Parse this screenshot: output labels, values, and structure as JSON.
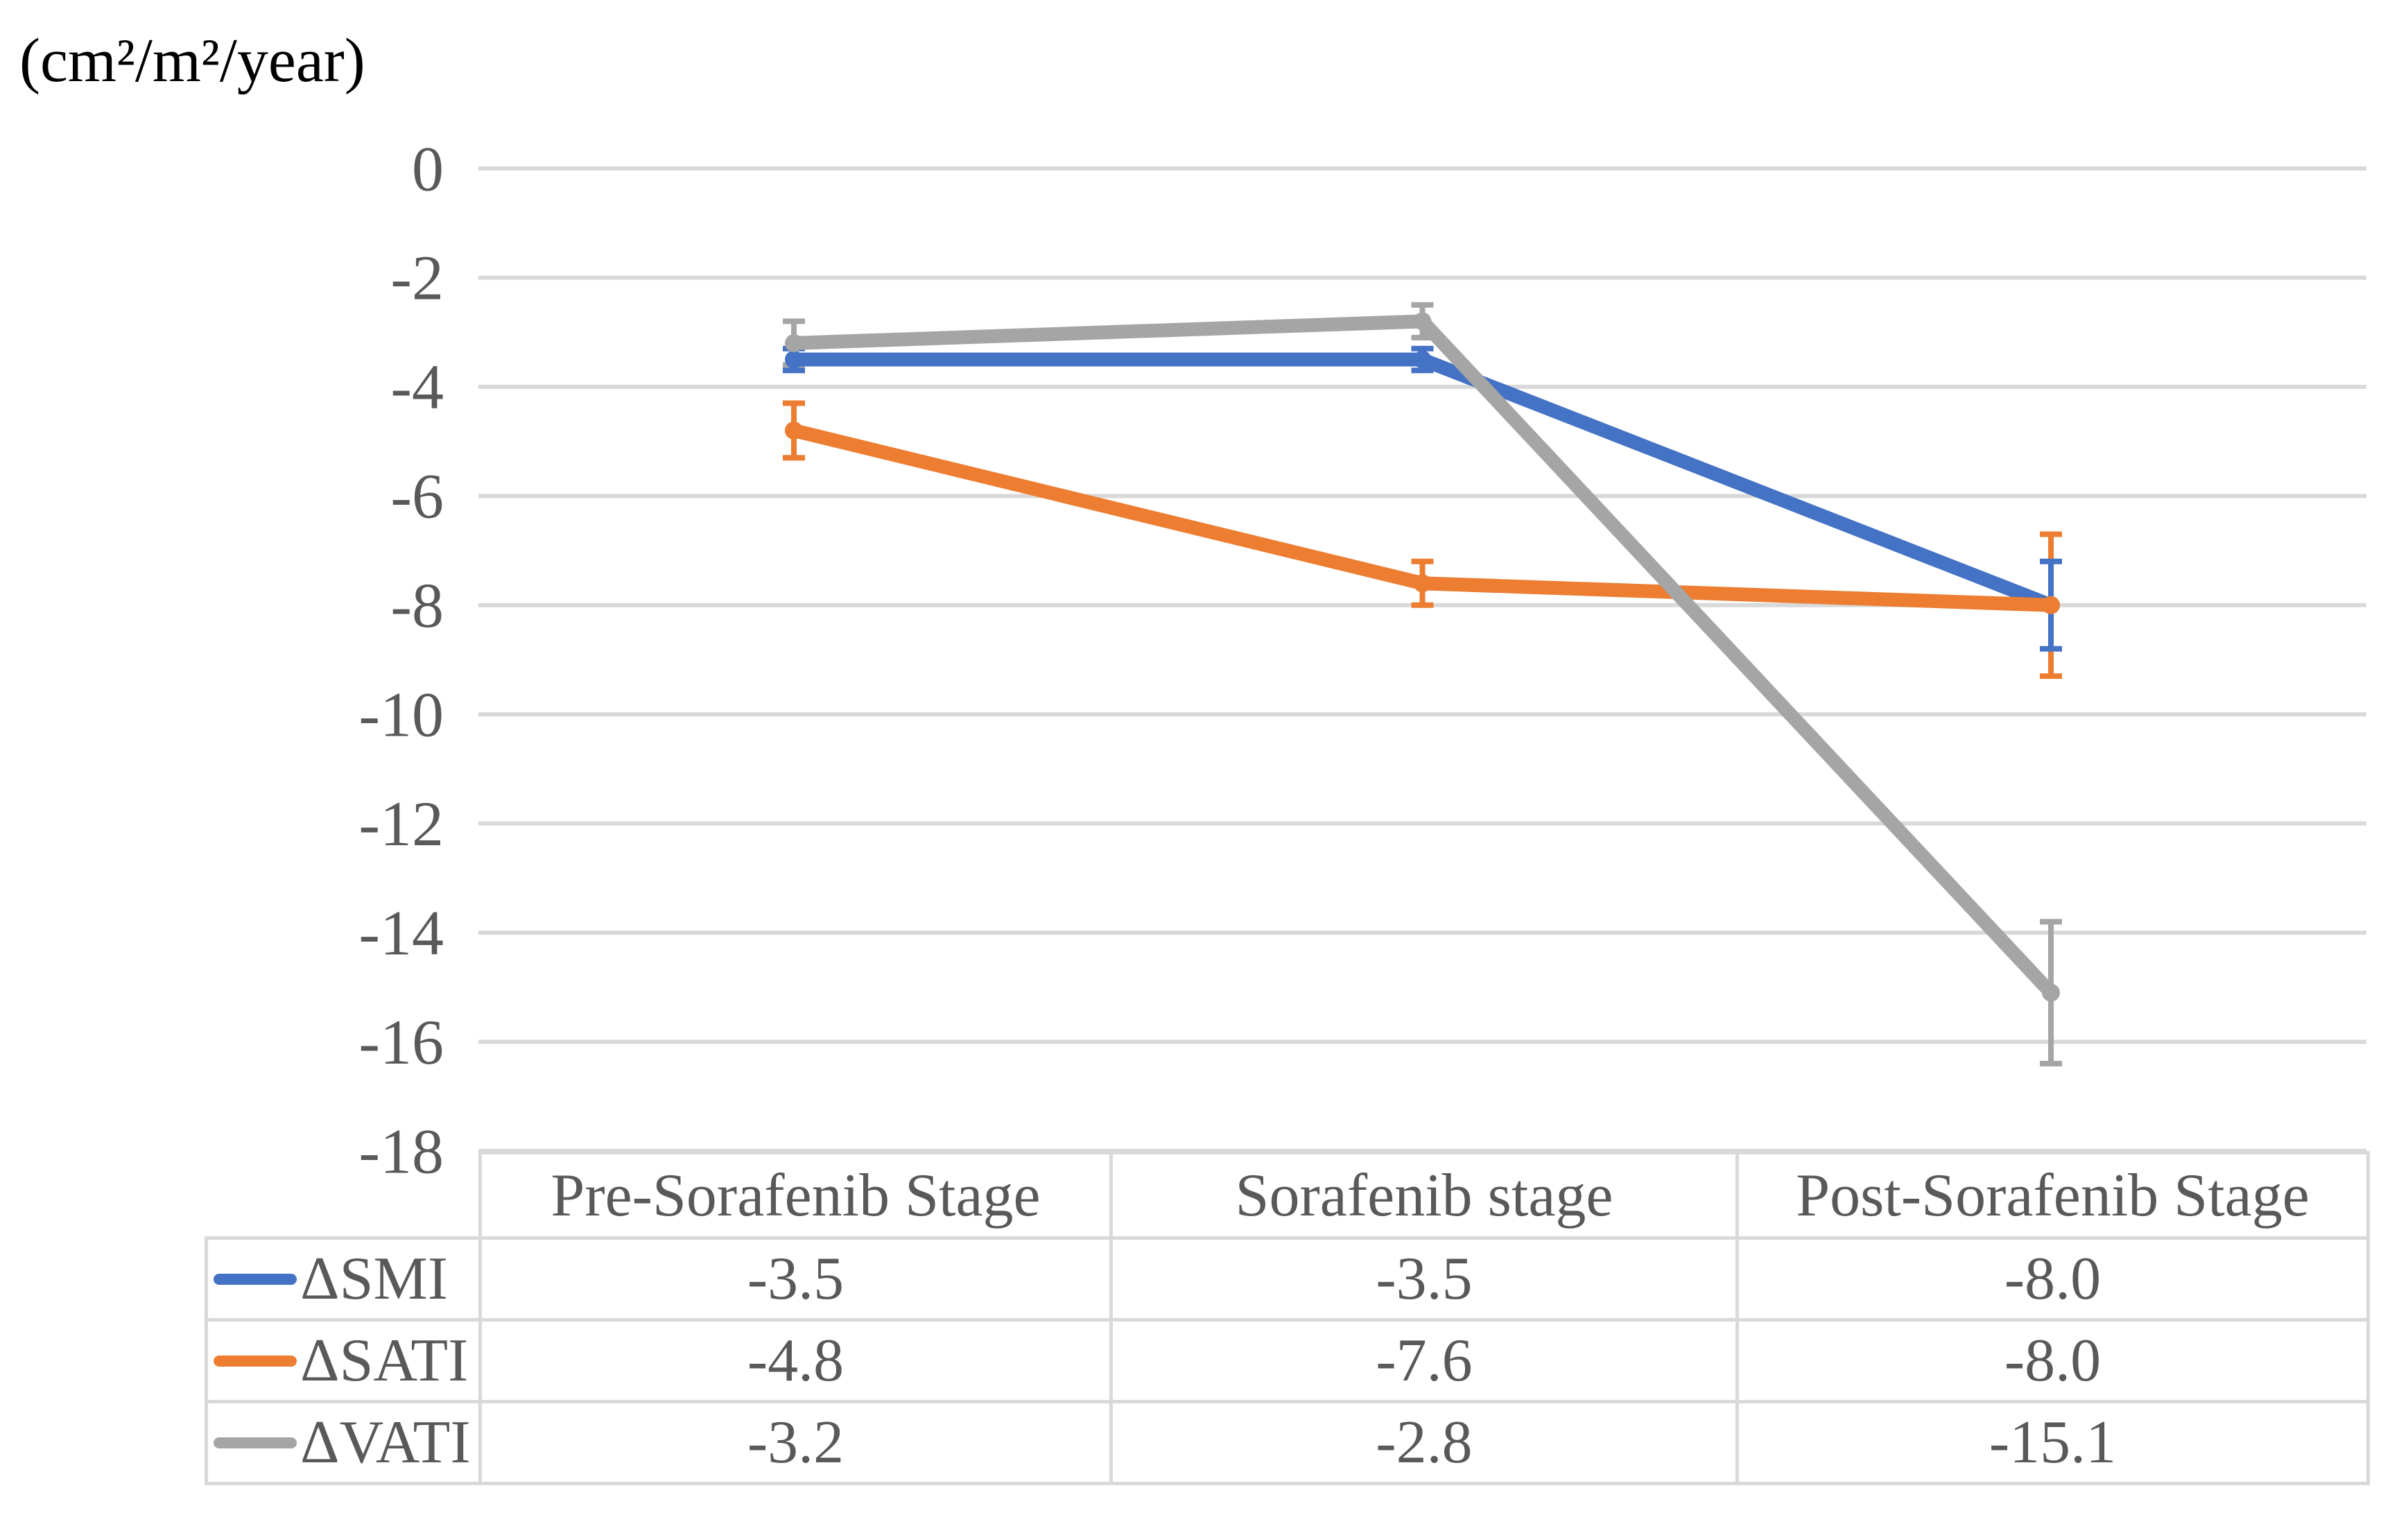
{
  "unit_label": "(cm²/m²/year)",
  "chart_data": {
    "type": "line",
    "title": "",
    "xlabel": "",
    "ylabel": "(cm²/m²/year)",
    "categories": [
      "Pre-Sorafenib Stage",
      "Sorafenib stage",
      "Post-Sorafenib Stage"
    ],
    "series": [
      {
        "name": "ΔSMI",
        "color": "#4472C4",
        "values": [
          -3.5,
          -3.5,
          -8.0
        ],
        "errors": [
          0.2,
          0.2,
          0.8
        ]
      },
      {
        "name": "ΔSATI",
        "color": "#ED7D31",
        "values": [
          -4.8,
          -7.6,
          -8.0
        ],
        "errors": [
          0.5,
          0.4,
          1.3
        ]
      },
      {
        "name": "ΔVATI",
        "color": "#A5A5A5",
        "values": [
          -3.2,
          -2.8,
          -15.1
        ],
        "errors": [
          0.4,
          0.3,
          1.3
        ]
      }
    ],
    "ylim": [
      -18,
      0
    ],
    "y_ticks": [
      0,
      -2,
      -4,
      -6,
      -8,
      -10,
      -12,
      -14,
      -16,
      -18
    ],
    "y_tick_labels": [
      "0",
      "-2",
      "-4",
      "-6",
      "-8",
      "-10",
      "-12",
      "-14",
      "-16",
      "-18"
    ],
    "grid": true,
    "gridline_color": "#D9D9D9",
    "axis_text_color": "#595959",
    "legend_position": "table-left",
    "error_bars": true
  },
  "table": {
    "header": [
      "",
      "Pre-Sorafenib Stage",
      "Sorafenib stage",
      "Post-Sorafenib Stage"
    ],
    "rows": [
      {
        "label": "ΔSMI",
        "values": [
          "-3.5",
          "-3.5",
          "-8.0"
        ]
      },
      {
        "label": "ΔSATI",
        "values": [
          "-4.8",
          "-7.6",
          "-8.0"
        ]
      },
      {
        "label": "ΔVATI",
        "values": [
          "-3.2",
          "-2.8",
          "-15.1"
        ]
      }
    ]
  },
  "colors": {
    "smi": "#4472C4",
    "sati": "#ED7D31",
    "vati": "#A5A5A5",
    "gridline": "#D9D9D9",
    "text": "#595959"
  }
}
